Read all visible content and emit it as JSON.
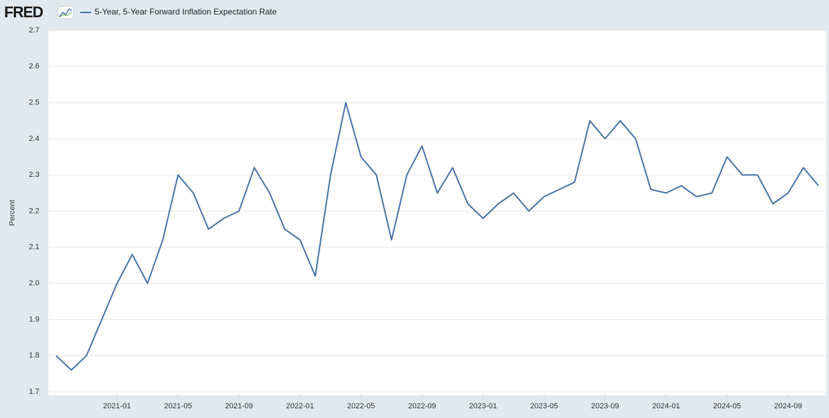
{
  "chart_data": {
    "type": "line",
    "logo": "FRED",
    "ylabel": "Percent",
    "x": [
      "2020-09",
      "2020-10",
      "2020-11",
      "2020-12",
      "2021-01",
      "2021-02",
      "2021-03",
      "2021-04",
      "2021-05",
      "2021-06",
      "2021-07",
      "2021-08",
      "2021-09",
      "2021-10",
      "2021-11",
      "2021-12",
      "2022-01",
      "2022-02",
      "2022-03",
      "2022-04",
      "2022-05",
      "2022-06",
      "2022-07",
      "2022-08",
      "2022-09",
      "2022-10",
      "2022-11",
      "2022-12",
      "2023-01",
      "2023-02",
      "2023-03",
      "2023-04",
      "2023-05",
      "2023-06",
      "2023-07",
      "2023-08",
      "2023-09",
      "2023-10",
      "2023-11",
      "2023-12",
      "2024-01",
      "2024-02",
      "2024-03",
      "2024-04",
      "2024-05",
      "2024-06",
      "2024-07",
      "2024-08",
      "2024-09",
      "2024-10",
      "2024-11"
    ],
    "series": [
      {
        "name": "5-Year, 5-Year Forward Inflation Expectation Rate",
        "color": "#4572a7",
        "values": [
          1.8,
          1.76,
          1.8,
          1.9,
          2.0,
          2.08,
          2.0,
          2.12,
          2.3,
          2.25,
          2.15,
          2.18,
          2.2,
          2.32,
          2.25,
          2.15,
          2.12,
          2.02,
          2.3,
          2.5,
          2.35,
          2.3,
          2.12,
          2.3,
          2.38,
          2.25,
          2.32,
          2.22,
          2.18,
          2.22,
          2.25,
          2.2,
          2.24,
          2.26,
          2.28,
          2.45,
          2.4,
          2.45,
          2.4,
          2.26,
          2.25,
          2.27,
          2.24,
          2.25,
          2.35,
          2.3,
          2.3,
          2.22,
          2.25,
          2.32,
          2.27
        ]
      }
    ],
    "xticks": [
      "2021-01",
      "2021-05",
      "2021-09",
      "2022-01",
      "2022-05",
      "2022-09",
      "2023-01",
      "2023-05",
      "2023-09",
      "2024-01",
      "2024-05",
      "2024-09"
    ],
    "ylim": [
      1.7,
      2.7
    ],
    "yticks": [
      1.7,
      1.8,
      1.9,
      {
        "value": 2,
        "label": "2.0"
      },
      2.1,
      2.2,
      2.3,
      2.4,
      2.5,
      2.6,
      2.7
    ],
    "grid": true
  }
}
